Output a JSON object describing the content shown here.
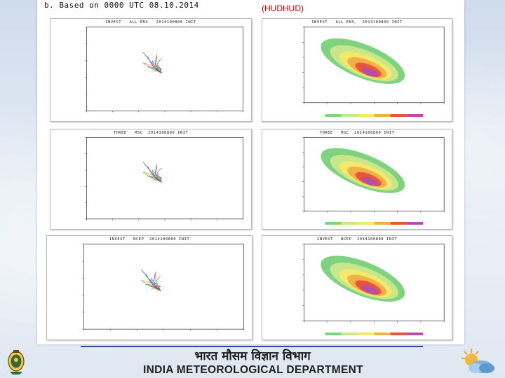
{
  "caption": "b. Based on 0000 UTC 08.10.2014",
  "storm_name": "(HUDHUD)",
  "panels": [
    {
      "title": "INVEST   ALL ENS.  2014100800 INIT",
      "kind": "tracks"
    },
    {
      "title": "INVEST   ALL ENS.  2014100800 INIT",
      "kind": "probability"
    },
    {
      "title": "THREE   MSC  2014100800 INIT",
      "kind": "tracks"
    },
    {
      "title": "THREE   MSC  2014100800 INIT",
      "kind": "probability"
    },
    {
      "title": "INVEST   NCEP  2014100800 INIT",
      "kind": "tracks"
    },
    {
      "title": "INVEST   NCEP  2014100800 INIT",
      "kind": "probability"
    }
  ],
  "probability_scale_colors": [
    "#7fd27f",
    "#c8e68c",
    "#f3ea6a",
    "#f2b04a",
    "#e8553a",
    "#b44ea8"
  ],
  "footer": {
    "hindi_title": "भारत मौसम विज्ञान विभाग",
    "department": "INDIA METEOROLOGICAL DEPARTMENT",
    "emblem_icon": "imd-emblem-icon",
    "logo_icon": "sun-cloud-logo-icon"
  }
}
